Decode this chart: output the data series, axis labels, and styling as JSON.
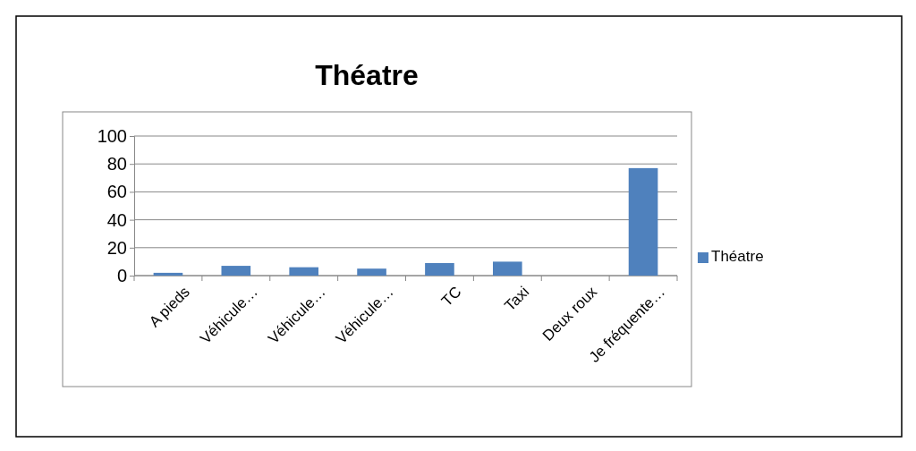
{
  "chart_data": {
    "type": "bar",
    "title": "Théatre",
    "categories": [
      "A pieds",
      "Véhicule…",
      "Véhicule…",
      "Véhicule…",
      "TC",
      "Taxi",
      "Deux roux",
      "Je fréquente…"
    ],
    "series": [
      {
        "name": "Théatre",
        "color": "#4f81bd",
        "values": [
          2,
          7,
          6,
          5,
          9,
          10,
          0,
          77
        ]
      }
    ],
    "ylim": [
      0,
      100
    ],
    "yticks": [
      0,
      20,
      40,
      60,
      80,
      100
    ],
    "grid": "y",
    "legend": "right"
  }
}
